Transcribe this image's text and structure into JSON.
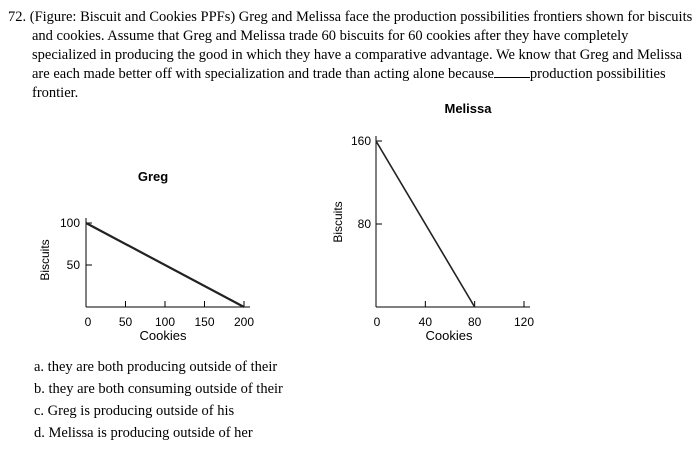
{
  "question": {
    "number": "72.",
    "lines": [
      "(Figure: Biscuit and Cookies PPFs) Greg and Melissa face the production possibilities frontiers shown for biscuits",
      "and cookies. Assume that Greg and Melissa trade 60 biscuits for 60 cookies after they have completely",
      "specialized in producing the good in which they have a comparative advantage. We know that Greg and Melissa",
      "are each made better off with specialization and trade than acting alone because",
      "production possibilities",
      "frontier."
    ]
  },
  "chart_data": [
    {
      "type": "line",
      "title": "Greg",
      "xlabel": "Cookies",
      "ylabel": "Biscuits",
      "xlim": [
        0,
        200
      ],
      "ylim": [
        0,
        100
      ],
      "x_ticks": [
        0,
        50,
        100,
        150,
        200
      ],
      "y_ticks": [
        50,
        100
      ],
      "series": [
        {
          "x": [
            0,
            200
          ],
          "y": [
            100,
            0
          ]
        }
      ]
    },
    {
      "type": "line",
      "title": "Melissa",
      "xlabel": "Cookies",
      "ylabel": "Biscuits",
      "xlim": [
        0,
        120
      ],
      "ylim": [
        0,
        160
      ],
      "x_ticks": [
        0,
        40,
        80,
        120
      ],
      "y_ticks": [
        80,
        160
      ],
      "series": [
        {
          "x": [
            0,
            80
          ],
          "y": [
            160,
            0
          ]
        }
      ]
    }
  ],
  "options": [
    "a. they are both producing outside of their",
    "b. they are both consuming outside of their",
    "c. Greg is producing outside of his",
    "d. Melissa is producing outside of her"
  ]
}
